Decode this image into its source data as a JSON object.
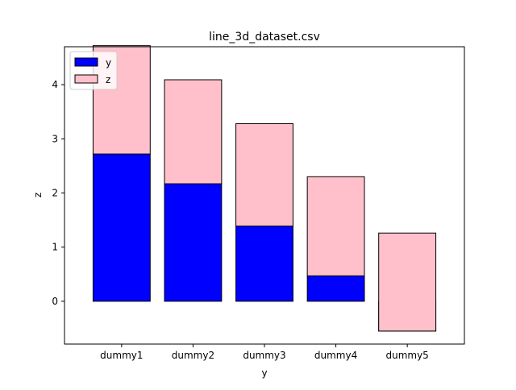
{
  "chart_data": {
    "type": "bar",
    "stacked": true,
    "title": "line_3d_dataset.csv",
    "xlabel": "y",
    "ylabel": "z",
    "categories": [
      "dummy1",
      "dummy2",
      "dummy3",
      "dummy4",
      "dummy5"
    ],
    "series": [
      {
        "name": "y",
        "color": "#0000ff",
        "bottoms": [
          0,
          0,
          0,
          0,
          0
        ],
        "values": [
          2.72,
          2.17,
          1.39,
          0.47,
          -0.55
        ]
      },
      {
        "name": "z",
        "color": "#ffc0cb",
        "bottoms": [
          2.72,
          2.17,
          1.39,
          0.47,
          -0.55
        ],
        "values": [
          2.0,
          1.92,
          1.89,
          1.83,
          1.81
        ]
      }
    ],
    "ylim": [
      -0.79,
      4.7
    ],
    "yticks": [
      0,
      1,
      2,
      3,
      4
    ],
    "grid": false,
    "legend_position": "upper left"
  }
}
